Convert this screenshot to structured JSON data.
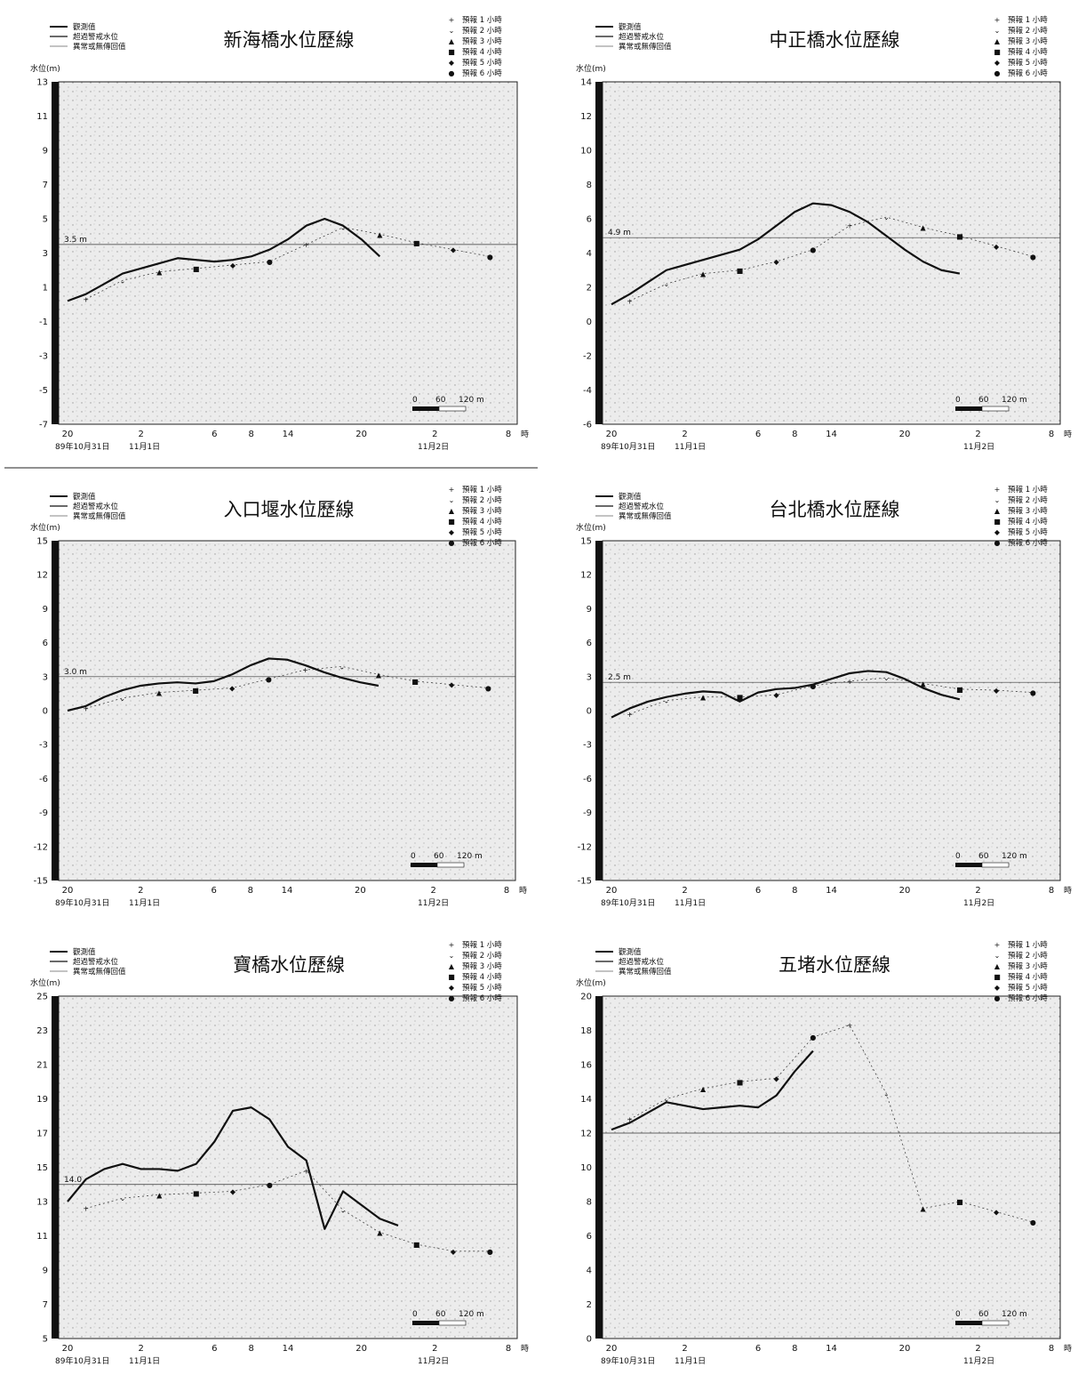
{
  "legend": {
    "left": [
      "觀測值",
      "超過警戒水位",
      "異常或無傳回值"
    ],
    "right": [
      "預報 1 小時",
      "預報 2 小時",
      "預報 3 小時",
      "預報 4 小時",
      "預報 5 小時",
      "預報 6 小時"
    ]
  },
  "axis": {
    "ylabel": "水位(m)",
    "x_ticks": [
      "20",
      "2",
      "6",
      "8",
      "14",
      "20",
      "2",
      "8"
    ],
    "x_unit": "時",
    "date_labels": [
      "89年10月31日",
      "11月1日",
      "11月2日"
    ],
    "scale_labels": [
      "0",
      "60",
      "120 m"
    ]
  },
  "chart_data": [
    {
      "type": "line",
      "title": "新海橋水位歷線",
      "ylim": [
        -7,
        13
      ],
      "yticks": [
        -7,
        -5,
        -3,
        -1,
        1,
        3,
        5,
        7,
        9,
        11,
        13
      ],
      "threshold": 3.5,
      "threshold_label": "3.5 m",
      "x_ticks": [
        "20",
        "2",
        "6",
        "8",
        "14",
        "20",
        "2",
        "8"
      ],
      "series": [
        {
          "name": "觀測值",
          "x": [
            0,
            2,
            4,
            6,
            8,
            10,
            12,
            14,
            16,
            18,
            20,
            22,
            24,
            26,
            28,
            30,
            32,
            34
          ],
          "values": [
            0.2,
            0.6,
            1.2,
            1.8,
            2.1,
            2.4,
            2.7,
            2.6,
            2.5,
            2.6,
            2.8,
            3.2,
            3.8,
            4.6,
            5.0,
            4.6,
            3.8,
            2.8
          ]
        }
      ],
      "forecast": {
        "x": [
          2,
          6,
          10,
          14,
          18,
          22,
          26,
          30,
          34,
          38,
          42,
          46
        ],
        "values": [
          0.3,
          1.4,
          1.9,
          2.1,
          2.3,
          2.5,
          3.5,
          4.5,
          4.1,
          3.6,
          3.2,
          2.8
        ]
      }
    },
    {
      "type": "line",
      "title": "中正橋水位歷線",
      "ylim": [
        -6,
        14
      ],
      "yticks": [
        -6,
        -4,
        -2,
        0,
        2,
        4,
        6,
        8,
        10,
        12,
        14
      ],
      "threshold": 4.9,
      "threshold_label": "4.9 m",
      "x_ticks": [
        "20",
        "2",
        "6",
        "8",
        "14",
        "20",
        "2",
        "8"
      ],
      "series": [
        {
          "name": "觀測值",
          "x": [
            0,
            2,
            4,
            6,
            8,
            10,
            12,
            14,
            16,
            18,
            20,
            22,
            24,
            26,
            28,
            30,
            32,
            34,
            36,
            38
          ],
          "values": [
            1.0,
            1.6,
            2.3,
            3.0,
            3.3,
            3.6,
            3.9,
            4.2,
            4.8,
            5.6,
            6.4,
            6.9,
            6.8,
            6.4,
            5.8,
            5.0,
            4.2,
            3.5,
            3.0,
            2.8
          ]
        }
      ],
      "forecast": {
        "x": [
          2,
          6,
          10,
          14,
          18,
          22,
          26,
          30,
          34,
          38,
          42,
          46
        ],
        "values": [
          1.2,
          2.2,
          2.8,
          3.0,
          3.5,
          4.2,
          5.6,
          6.1,
          5.5,
          5.0,
          4.4,
          3.8
        ]
      }
    },
    {
      "type": "line",
      "title": "入口堰水位歷線",
      "ylim": [
        -15,
        15
      ],
      "yticks": [
        -15,
        -12,
        -9,
        -6,
        -3,
        0,
        3,
        6,
        9,
        12,
        15
      ],
      "threshold": 3.0,
      "threshold_label": "3.0 m",
      "x_ticks": [
        "20",
        "2",
        "6",
        "8",
        "14",
        "20",
        "2",
        "8"
      ],
      "series": [
        {
          "name": "觀測值",
          "x": [
            0,
            2,
            4,
            6,
            8,
            10,
            12,
            14,
            16,
            18,
            20,
            22,
            24,
            26,
            28,
            30,
            32,
            34
          ],
          "values": [
            0.0,
            0.4,
            1.2,
            1.8,
            2.2,
            2.4,
            2.5,
            2.4,
            2.6,
            3.2,
            4.0,
            4.6,
            4.5,
            4.0,
            3.4,
            2.9,
            2.5,
            2.2
          ]
        }
      ],
      "forecast": {
        "x": [
          2,
          6,
          10,
          14,
          18,
          22,
          26,
          30,
          34,
          38,
          42,
          46
        ],
        "values": [
          0.2,
          1.1,
          1.6,
          1.8,
          2.0,
          2.8,
          3.6,
          3.9,
          3.2,
          2.6,
          2.3,
          2.0
        ]
      }
    },
    {
      "type": "line",
      "title": "台北橋水位歷線",
      "ylim": [
        -15,
        15
      ],
      "yticks": [
        -15,
        -12,
        -9,
        -6,
        -3,
        0,
        3,
        6,
        9,
        12,
        15
      ],
      "threshold": 2.5,
      "threshold_label": "2.5 m",
      "x_ticks": [
        "20",
        "2",
        "6",
        "8",
        "14",
        "20",
        "2",
        "8"
      ],
      "series": [
        {
          "name": "觀測值",
          "x": [
            0,
            2,
            4,
            6,
            8,
            10,
            12,
            14,
            16,
            18,
            20,
            22,
            24,
            26,
            28,
            30,
            32,
            34,
            36,
            38
          ],
          "values": [
            -0.6,
            0.2,
            0.8,
            1.2,
            1.5,
            1.7,
            1.6,
            0.8,
            1.6,
            1.9,
            2.0,
            2.3,
            2.8,
            3.3,
            3.5,
            3.4,
            2.8,
            2.0,
            1.4,
            1.0
          ]
        }
      ],
      "forecast": {
        "x": [
          2,
          6,
          10,
          14,
          18,
          22,
          26,
          30,
          34,
          38,
          42,
          46
        ],
        "values": [
          -0.3,
          0.9,
          1.2,
          1.2,
          1.4,
          2.2,
          2.6,
          2.9,
          2.4,
          1.9,
          1.8,
          1.6
        ]
      }
    },
    {
      "type": "line",
      "title": "寶橋水位歷線",
      "ylim": [
        5,
        25
      ],
      "yticks": [
        5,
        7,
        9,
        11,
        13,
        15,
        17,
        19,
        21,
        23,
        25
      ],
      "threshold": 14.0,
      "threshold_label": "14.0",
      "x_ticks": [
        "20",
        "2",
        "6",
        "8",
        "14",
        "20",
        "2",
        "8"
      ],
      "series": [
        {
          "name": "觀測值",
          "x": [
            0,
            2,
            4,
            6,
            8,
            10,
            12,
            14,
            16,
            18,
            20,
            22,
            24,
            26,
            28,
            30,
            32,
            34,
            36
          ],
          "values": [
            13.0,
            14.3,
            14.9,
            15.2,
            14.9,
            14.9,
            14.8,
            15.2,
            16.5,
            18.3,
            18.5,
            17.8,
            16.2,
            15.4,
            11.4,
            13.6,
            12.8,
            12.0,
            11.6
          ]
        }
      ],
      "forecast": {
        "x": [
          2,
          6,
          10,
          14,
          18,
          22,
          26,
          30,
          34,
          38,
          42,
          46
        ],
        "values": [
          12.6,
          13.2,
          13.4,
          13.5,
          13.6,
          14.0,
          14.8,
          12.5,
          11.2,
          10.5,
          10.1,
          10.1
        ]
      }
    },
    {
      "type": "line",
      "title": "五堵水位歷線",
      "ylim": [
        0,
        20
      ],
      "yticks": [
        0,
        2,
        4,
        6,
        8,
        10,
        12,
        14,
        16,
        18,
        20
      ],
      "threshold": 12.0,
      "threshold_label": "",
      "x_ticks": [
        "20",
        "2",
        "6",
        "8",
        "14",
        "20",
        "2",
        "8"
      ],
      "series": [
        {
          "name": "觀測值",
          "x": [
            0,
            2,
            4,
            6,
            8,
            10,
            12,
            14,
            16,
            18,
            20,
            22
          ],
          "values": [
            12.2,
            12.6,
            13.2,
            13.8,
            13.6,
            13.4,
            13.5,
            13.6,
            13.5,
            14.2,
            15.6,
            16.8
          ]
        }
      ],
      "forecast": {
        "x": [
          2,
          6,
          10,
          14,
          18,
          22,
          26,
          30,
          34,
          38,
          42,
          46
        ],
        "values": [
          12.8,
          14.0,
          14.6,
          15.0,
          15.2,
          17.6,
          18.3,
          14.3,
          7.6,
          8.0,
          7.4,
          6.8
        ]
      }
    }
  ]
}
